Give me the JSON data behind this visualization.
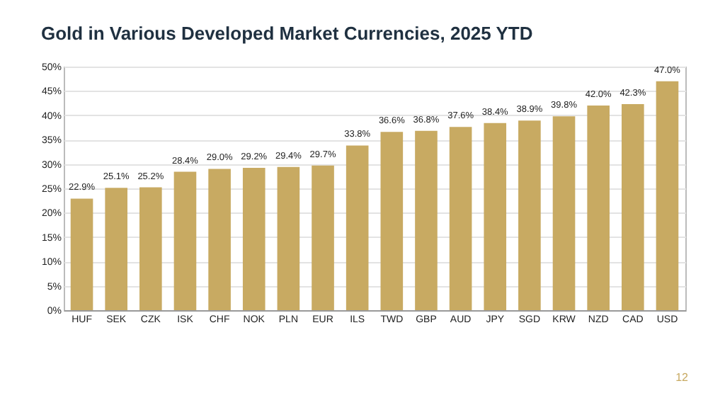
{
  "chart_data": {
    "type": "bar",
    "title": "Gold in Various Developed Market Currencies, 2025 YTD",
    "categories": [
      "HUF",
      "SEK",
      "CZK",
      "ISK",
      "CHF",
      "NOK",
      "PLN",
      "EUR",
      "ILS",
      "TWD",
      "GBP",
      "AUD",
      "JPY",
      "SGD",
      "KRW",
      "NZD",
      "CAD",
      "USD"
    ],
    "values": [
      22.9,
      25.1,
      25.2,
      28.4,
      29.0,
      29.2,
      29.4,
      29.7,
      33.8,
      36.6,
      36.8,
      37.6,
      38.4,
      38.9,
      39.8,
      42.0,
      42.3,
      47.0
    ],
    "value_labels": [
      "22.9%",
      "25.1%",
      "25.2%",
      "28.4%",
      "29.0%",
      "29.2%",
      "29.4%",
      "29.7%",
      "33.8%",
      "36.6%",
      "36.8%",
      "37.6%",
      "38.4%",
      "38.9%",
      "39.8%",
      "42.0%",
      "42.3%",
      "47.0%"
    ],
    "color": "#c8aa62",
    "ylim": [
      0,
      50
    ],
    "yticks": [
      {
        "value": 0,
        "label": "0%"
      },
      {
        "value": 5,
        "label": "5%"
      },
      {
        "value": 10,
        "label": "10%"
      },
      {
        "value": 15,
        "label": "15%"
      },
      {
        "value": 20,
        "label": "20%"
      },
      {
        "value": 25,
        "label": "25%"
      },
      {
        "value": 30,
        "label": "30%"
      },
      {
        "value": 35,
        "label": "35%"
      },
      {
        "value": 40,
        "label": "40%"
      },
      {
        "value": 45,
        "label": "45%"
      },
      {
        "value": 50,
        "label": "50%"
      }
    ],
    "grid": "y",
    "annotations": [
      "12"
    ]
  }
}
